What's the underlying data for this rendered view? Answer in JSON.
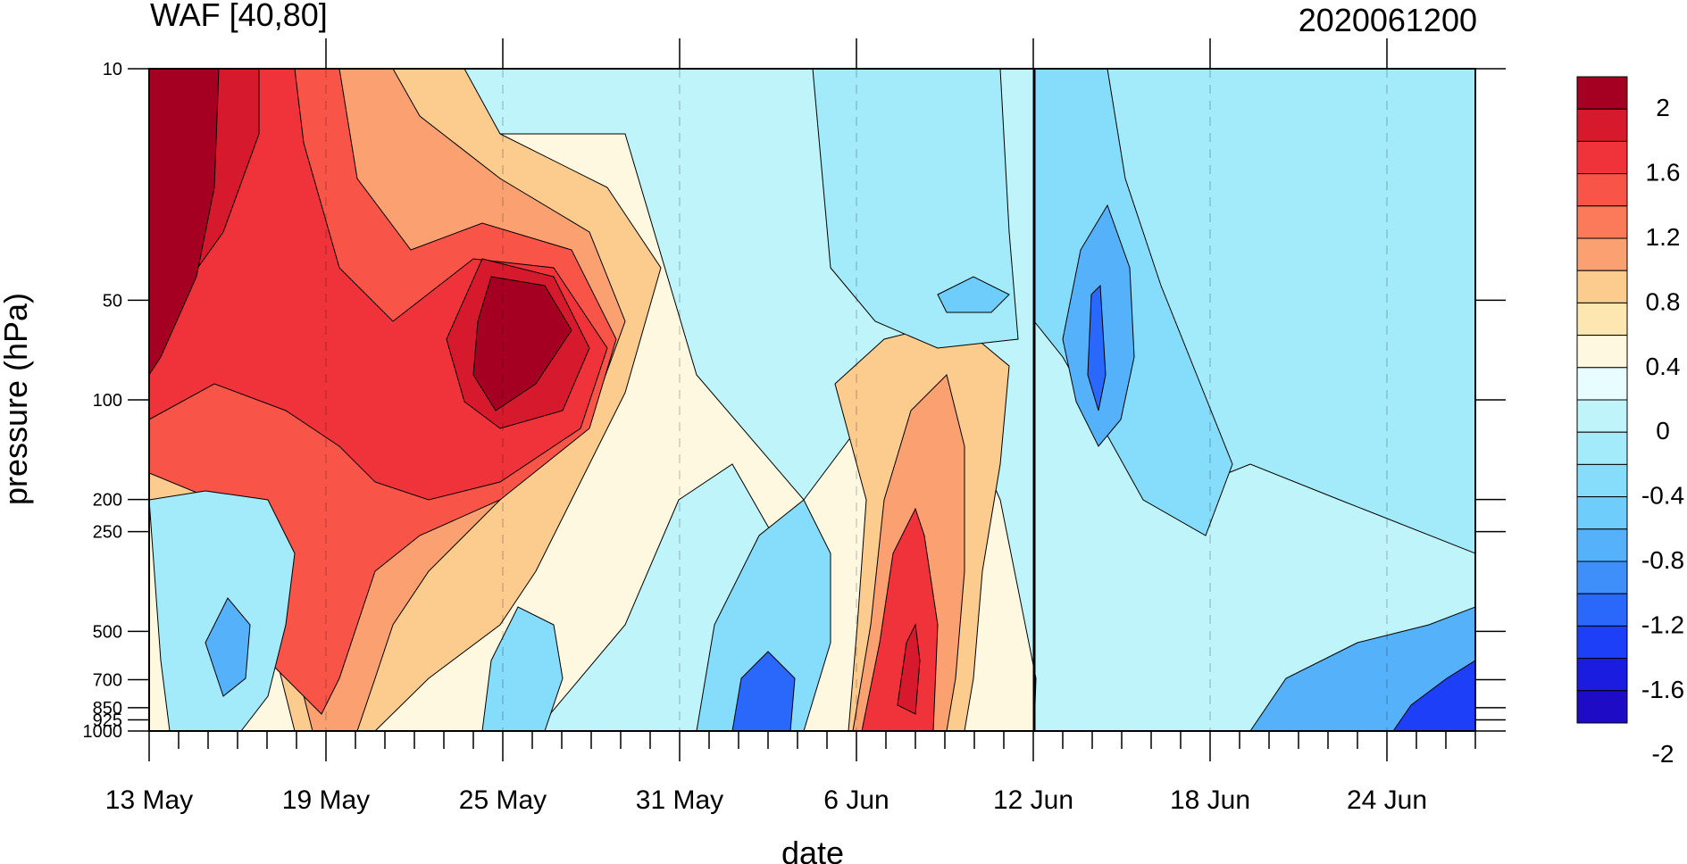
{
  "chart_data": {
    "type": "heatmap",
    "title": "WAF [40,80]",
    "date_stamp": "2020061200",
    "xlabel": "date",
    "ylabel": "pressure (hPa)",
    "y_scale": "log",
    "y_reversed": true,
    "ylim": [
      1000,
      10
    ],
    "x_start": "13 May",
    "x_end": "27 Jun",
    "x_ticks": [
      "13 May",
      "19 May",
      "25 May",
      "31 May",
      "6 Jun",
      "12 Jun",
      "18 Jun",
      "24 Jun"
    ],
    "y_ticks": [
      "10",
      "50",
      "100",
      "200",
      "250",
      "500",
      "700",
      "850",
      "925",
      "1000"
    ],
    "reference_line": "12 Jun",
    "colorbar": {
      "labels": [
        "2",
        "1.6",
        "1.2",
        "0.8",
        "0.4",
        "0",
        "-0.4",
        "-0.8",
        "-1.2",
        "-1.6",
        "-2"
      ],
      "colors": [
        "#a50021",
        "#d7192d",
        "#f0333a",
        "#f85548",
        "#fa7a5a",
        "#fba071",
        "#fccb8e",
        "#fde6b0",
        "#fff8e1",
        "#e8fdff",
        "#bff4fb",
        "#a3eafb",
        "#86dcfb",
        "#6ecdfb",
        "#56b1fb",
        "#3f8ffb",
        "#2a67fb",
        "#1d3ff8",
        "#1a1ce0",
        "#1e0bc6"
      ]
    }
  }
}
